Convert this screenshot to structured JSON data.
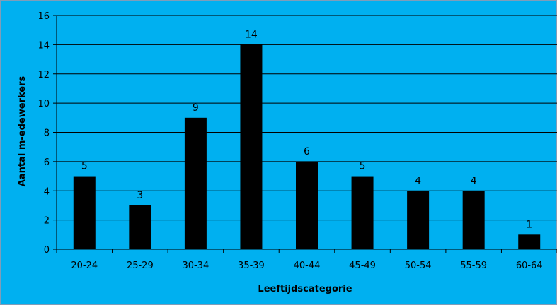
{
  "chart_data": {
    "type": "bar",
    "categories": [
      "20-24",
      "25-29",
      "30-34",
      "35-39",
      "40-44",
      "45-49",
      "50-54",
      "55-59",
      "60-64"
    ],
    "values": [
      5,
      3,
      9,
      14,
      6,
      5,
      4,
      4,
      1
    ],
    "data_labels": [
      "5",
      "3",
      "9",
      "14",
      "6",
      "5",
      "4",
      "4",
      "1"
    ],
    "title": "",
    "xlabel": "Leeftijdscategorie",
    "ylabel": "Aantal m-edewerkers",
    "ylim": [
      0,
      16
    ],
    "yticks": [
      0,
      2,
      4,
      6,
      8,
      10,
      12,
      14,
      16
    ],
    "ytick_labels": [
      "0",
      "2",
      "4",
      "6",
      "8",
      "10",
      "12",
      "14",
      "16"
    ],
    "grid": true,
    "legend": "none",
    "colors": {
      "background": "#00b0f0",
      "bar": "#000000",
      "gridline": "#000000"
    }
  }
}
